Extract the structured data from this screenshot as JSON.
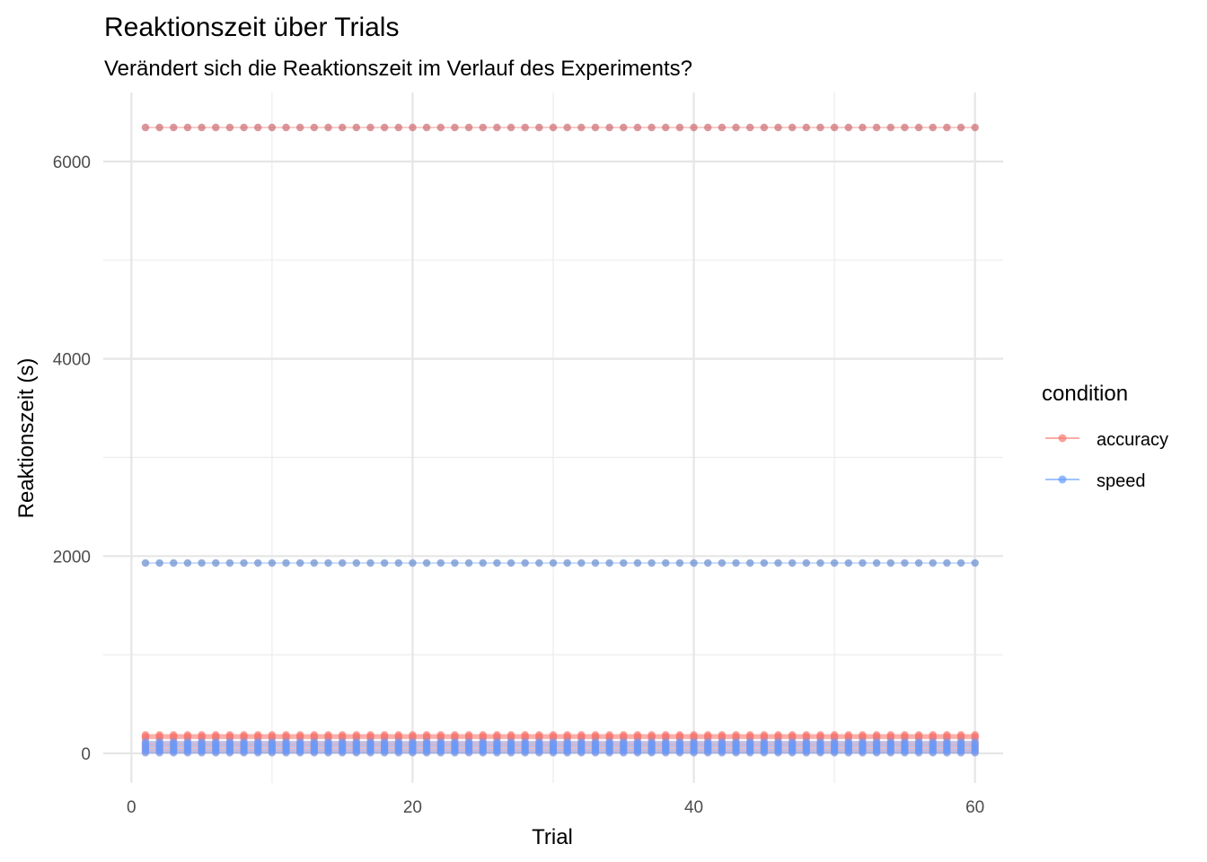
{
  "chart_data": {
    "type": "line",
    "title": "Reaktionszeit über Trials",
    "subtitle": "Verändert sich die Reaktionszeit im Verlauf des Experiments?",
    "xlabel": "Trial",
    "ylabel": "Reaktionszeit (s)",
    "xlim": [
      -2,
      62
    ],
    "ylim": [
      -300,
      6700
    ],
    "x_ticks": [
      0,
      20,
      40,
      60
    ],
    "x_minor_ticks": [
      10,
      30,
      50
    ],
    "y_ticks": [
      0,
      2000,
      4000,
      6000
    ],
    "y_minor_ticks": [
      1000,
      3000,
      5000
    ],
    "grid": true,
    "legend_position": "right",
    "legend_title": "condition",
    "x": [
      1,
      2,
      3,
      4,
      5,
      6,
      7,
      8,
      9,
      10,
      11,
      12,
      13,
      14,
      15,
      16,
      17,
      18,
      19,
      20,
      21,
      22,
      23,
      24,
      25,
      26,
      27,
      28,
      29,
      30,
      31,
      32,
      33,
      34,
      35,
      36,
      37,
      38,
      39,
      40,
      41,
      42,
      43,
      44,
      45,
      46,
      47,
      48,
      49,
      50,
      51,
      52,
      53,
      54,
      55,
      56,
      57,
      58,
      59,
      60
    ],
    "series": [
      {
        "name": "accuracy",
        "color": "#f8766d",
        "level_groups": [
          {
            "values": [
              6345
            ],
            "lines": 1
          },
          {
            "values": [
              190,
              180,
              170,
              160,
              150
            ],
            "lines": 5
          },
          {
            "values": [
              110,
              90,
              70,
              50,
              30,
              10
            ],
            "lines": 6
          }
        ]
      },
      {
        "name": "speed",
        "color": "#619cff",
        "level_groups": [
          {
            "values": [
              1930
            ],
            "lines": 1
          },
          {
            "values": [
              120,
              100,
              80,
              60,
              40,
              20,
              5
            ],
            "lines": 7
          }
        ]
      }
    ],
    "legend": [
      {
        "label": "accuracy",
        "color": "#f8766d"
      },
      {
        "label": "speed",
        "color": "#619cff"
      }
    ]
  }
}
